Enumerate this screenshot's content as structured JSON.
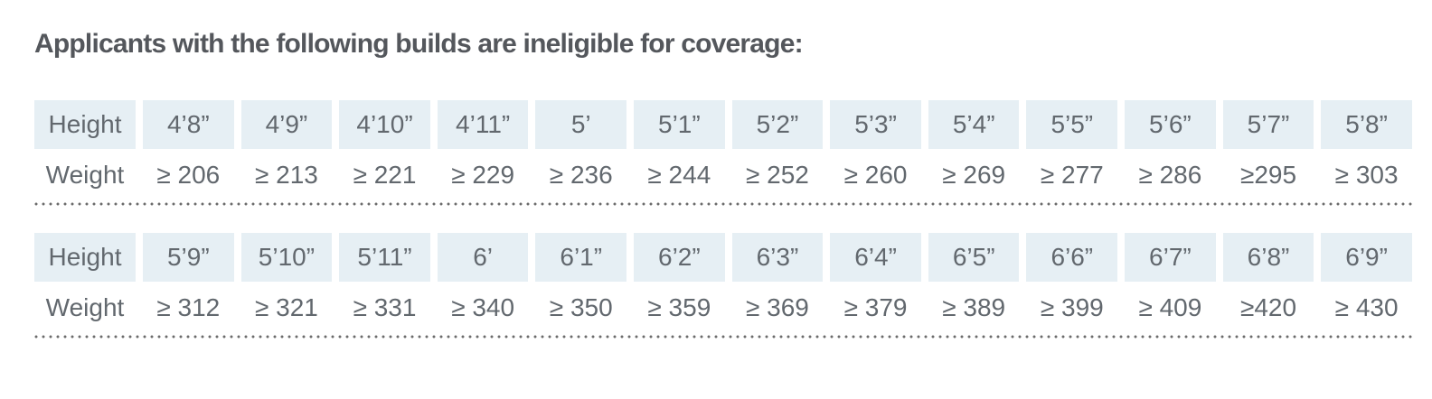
{
  "title": "Applicants with the following builds are ineligible for coverage:",
  "table": {
    "height_label": "Height",
    "weight_label": "Weight",
    "colors": {
      "height_cell_background": "#e6eff4",
      "table_text": "#62686e",
      "title_text": "#54575c",
      "divider_dots": "#6b6b6b"
    },
    "sections": [
      {
        "heights": [
          "4’8”",
          "4’9”",
          "4’10”",
          "4’11”",
          "5’",
          "5’1”",
          "5’2”",
          "5’3”",
          "5’4”",
          "5’5”",
          "5’6”",
          "5’7”",
          "5’8”"
        ],
        "weights": [
          "≥ 206",
          "≥ 213",
          "≥ 221",
          "≥ 229",
          "≥ 236",
          "≥ 244",
          "≥ 252",
          "≥ 260",
          "≥ 269",
          "≥ 277",
          "≥ 286",
          "≥295",
          "≥ 303"
        ]
      },
      {
        "heights": [
          "5’9”",
          "5’10”",
          "5’11”",
          "6’",
          "6’1”",
          "6’2”",
          "6’3”",
          "6’4”",
          "6’5”",
          "6’6”",
          "6’7”",
          "6’8”",
          "6’9”"
        ],
        "weights": [
          "≥ 312",
          "≥ 321",
          "≥ 331",
          "≥ 340",
          "≥ 350",
          "≥ 359",
          "≥ 369",
          "≥ 379",
          "≥ 389",
          "≥ 399",
          "≥ 409",
          "≥420",
          "≥ 430"
        ]
      }
    ]
  }
}
